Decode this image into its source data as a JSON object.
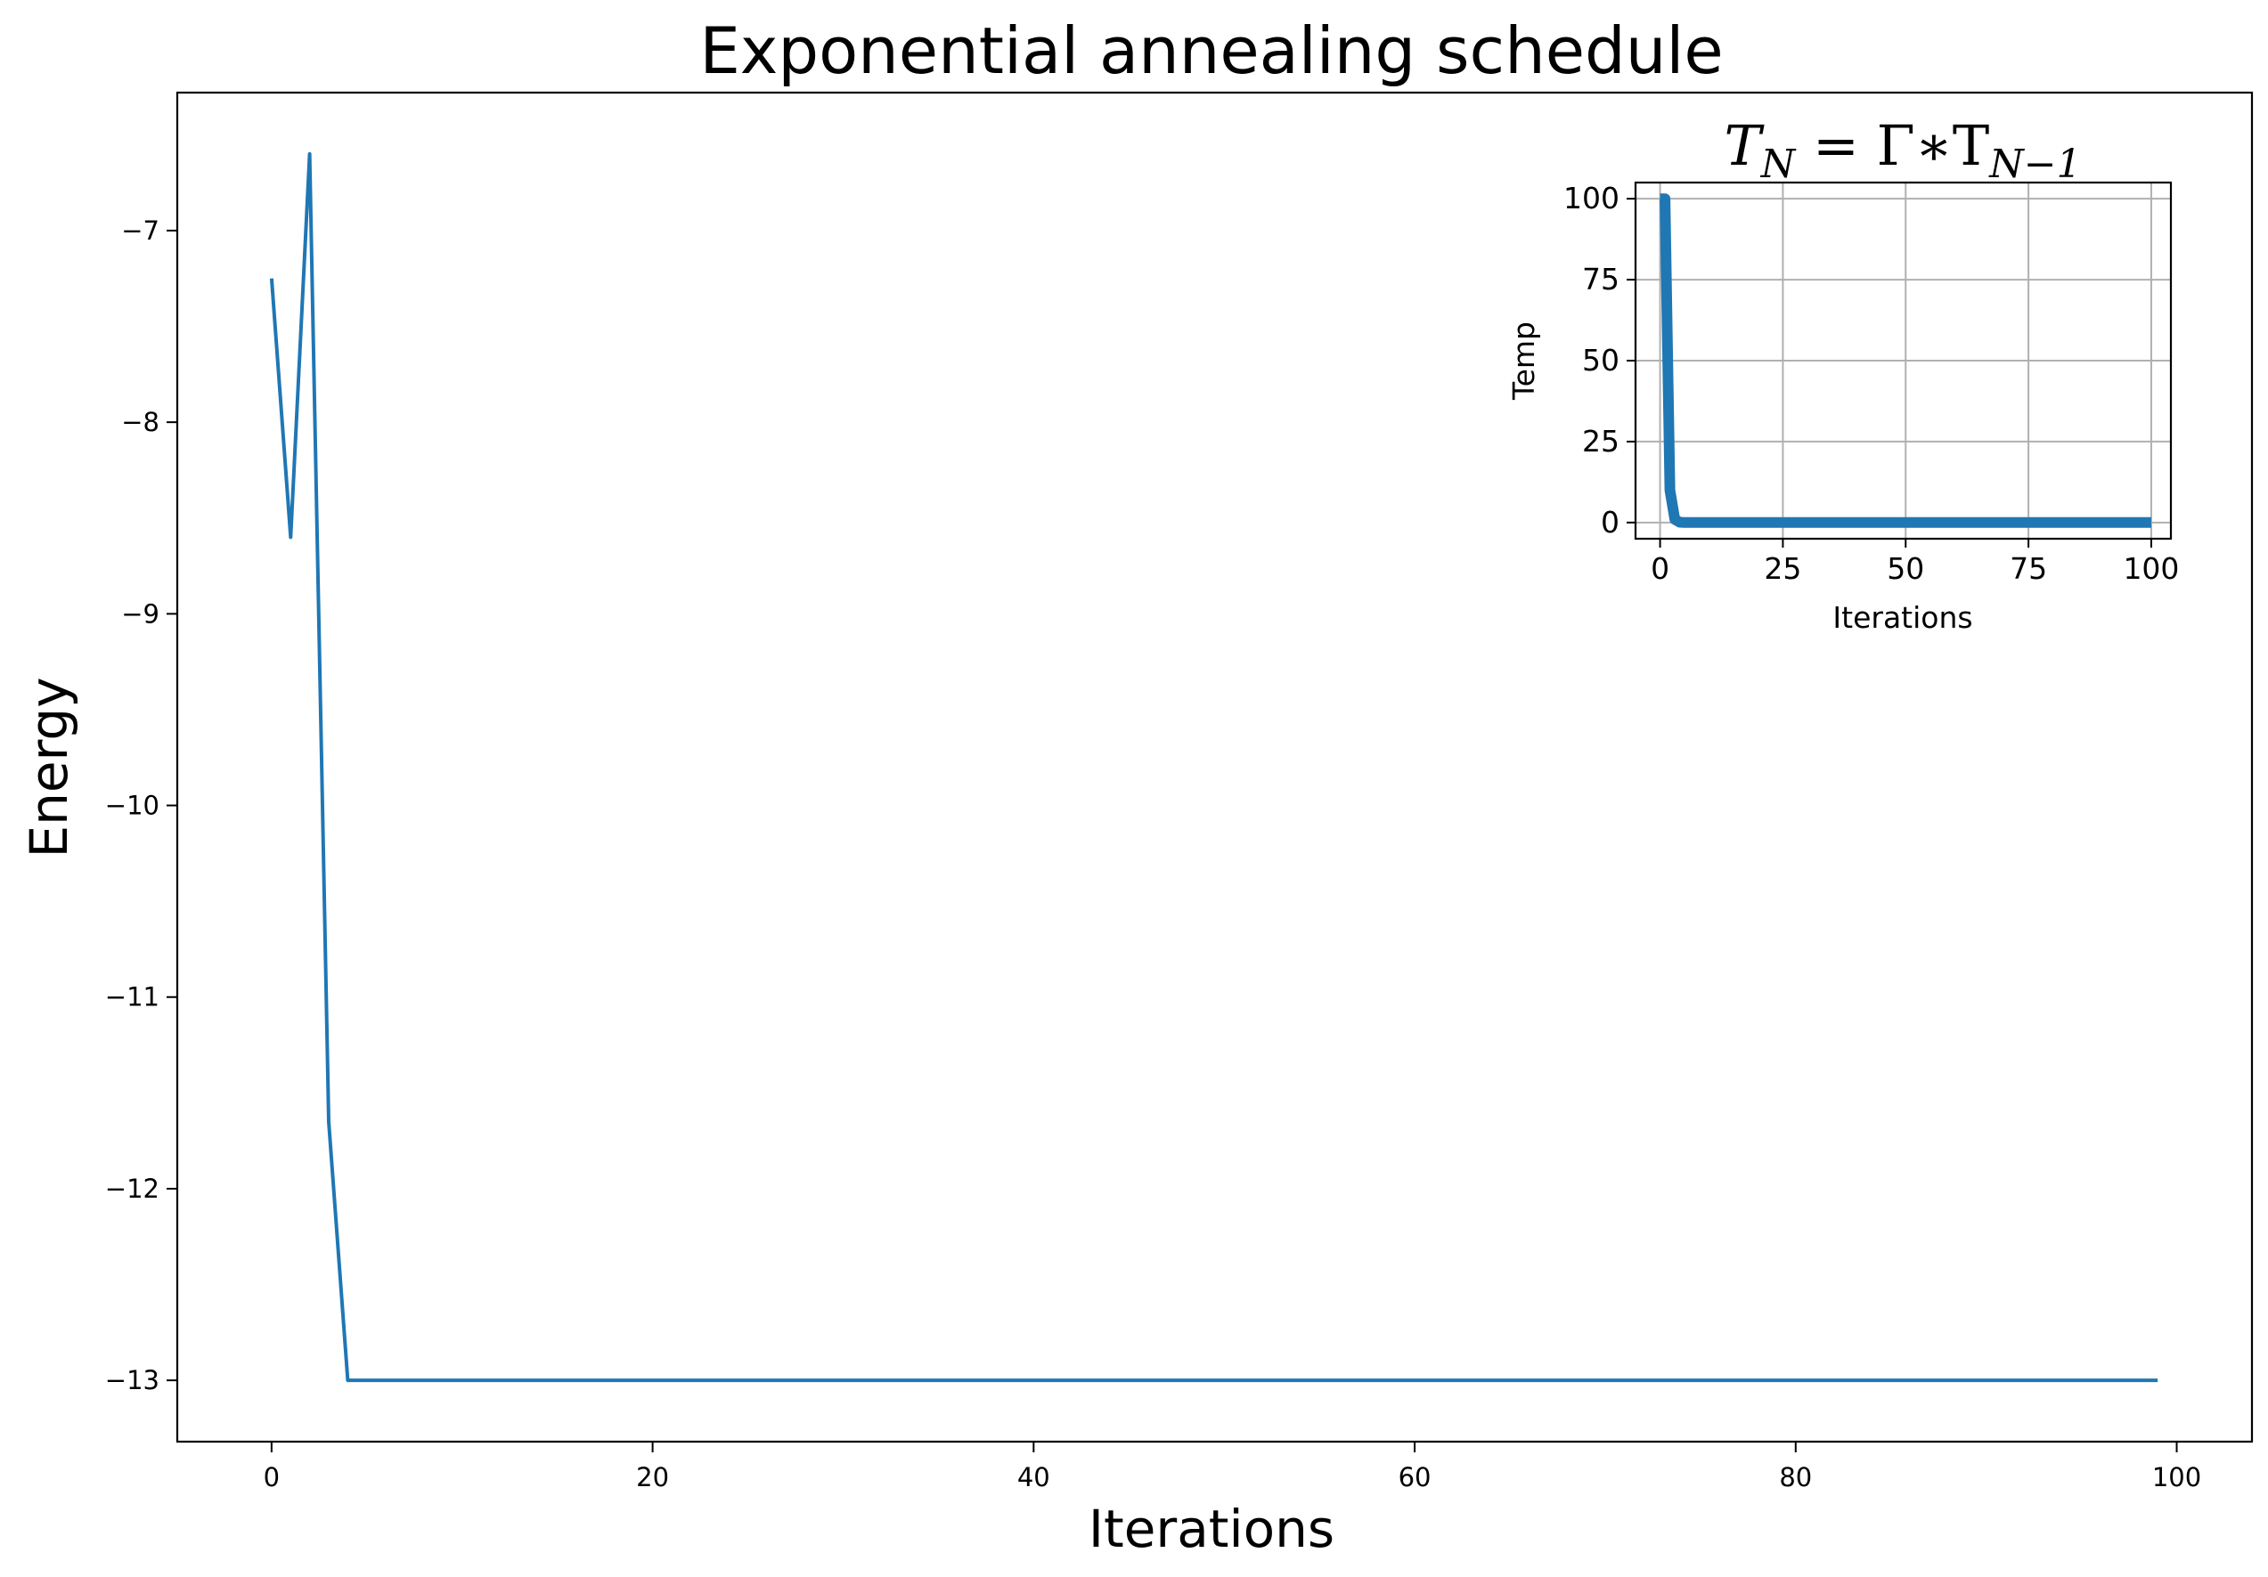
{
  "chart_data": [
    {
      "type": "line",
      "title": "Exponential annealing schedule",
      "xlabel": "Iterations",
      "ylabel": "Energy",
      "xlim": [
        -4.95,
        103.95
      ],
      "ylim": [
        -13.32,
        -6.28
      ],
      "xticks": [
        0,
        20,
        40,
        60,
        80,
        100
      ],
      "yticks": [
        -13,
        -12,
        -11,
        -10,
        -9,
        -8,
        -7
      ],
      "grid": false,
      "series": [
        {
          "color": "#1f77b4",
          "x": [
            0,
            1,
            2,
            3,
            4,
            99
          ],
          "y": [
            -7.25,
            -8.6,
            -6.6,
            -11.65,
            -13.0,
            -13.0
          ]
        }
      ]
    },
    {
      "type": "line",
      "title": "T_N = Γ∗T_{N−1}",
      "xlabel": "Iterations",
      "ylabel": "Temp",
      "xlim": [
        -5,
        104
      ],
      "ylim": [
        -5,
        105
      ],
      "xticks": [
        0,
        25,
        50,
        75,
        100
      ],
      "yticks": [
        0,
        25,
        50,
        75,
        100
      ],
      "grid": true,
      "series": [
        {
          "color": "#1f77b4",
          "x": [
            0,
            1,
            2,
            3,
            4,
            5,
            100
          ],
          "y": [
            100,
            100,
            10,
            1,
            0.1,
            0.01,
            0
          ]
        }
      ]
    }
  ]
}
